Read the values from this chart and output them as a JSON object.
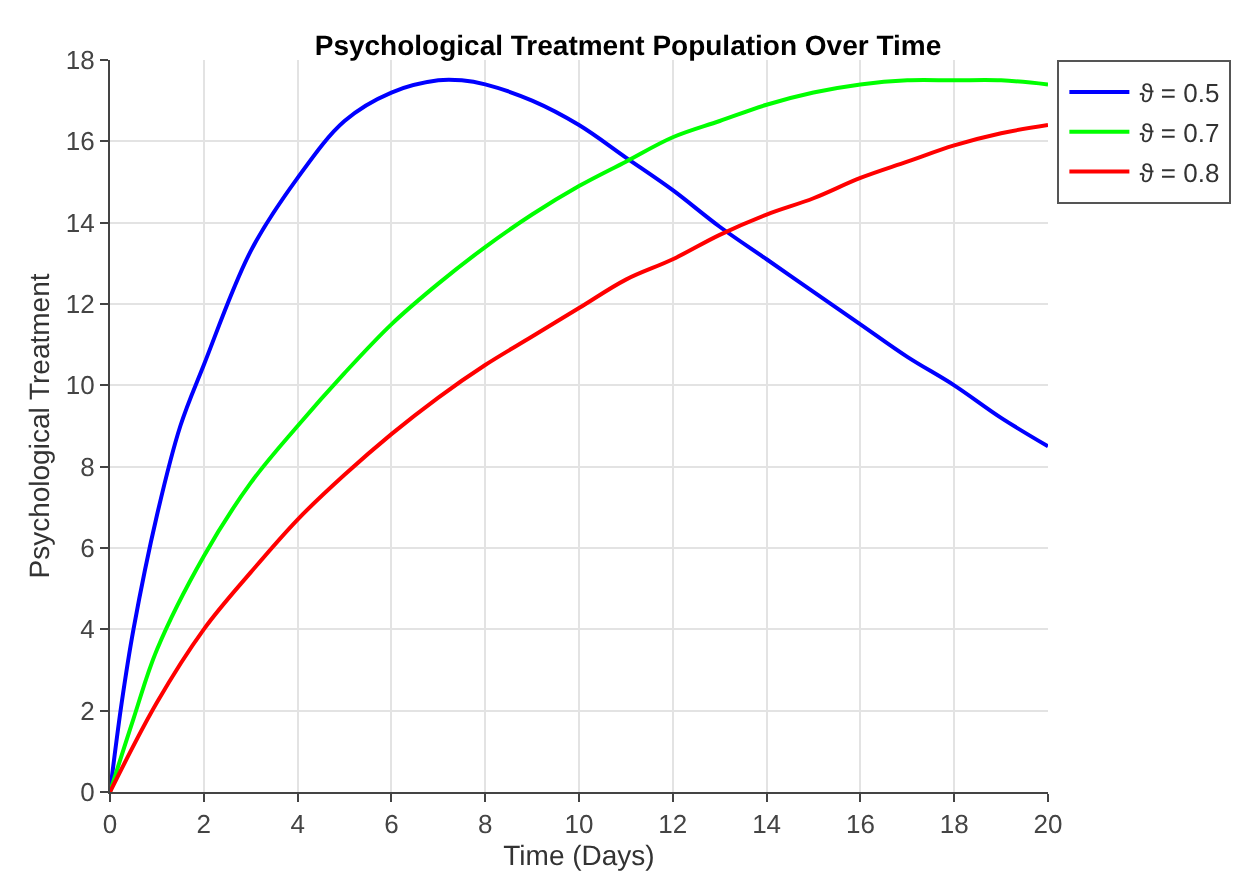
{
  "chart_data": {
    "type": "line",
    "title": "Psychological Treatment Population Over Time",
    "xlabel": "Time (Days)",
    "ylabel": "Psychological Treatment",
    "xlim": [
      0,
      20
    ],
    "xticks": [
      0,
      2,
      4,
      6,
      8,
      10,
      12,
      14,
      16,
      18,
      20
    ],
    "ylim": [
      0,
      18
    ],
    "yticks": [
      0,
      2,
      4,
      6,
      8,
      10,
      12,
      14,
      16,
      18
    ],
    "grid": true,
    "legend": "top right",
    "marker": "none",
    "line_style": "solid",
    "series": [
      {
        "name": "ϑ = 0.5",
        "color": "#0000ff",
        "x": [
          0,
          0.25,
          0.5,
          1,
          1.5,
          2,
          3,
          4,
          5,
          6,
          7,
          7.5,
          8,
          9,
          10,
          11,
          12,
          13,
          14,
          15,
          16,
          17,
          18,
          19,
          20
        ],
        "values": [
          0,
          2.2,
          4,
          6.8,
          9,
          10.5,
          13.3,
          15.1,
          16.5,
          17.2,
          17.5,
          17.5,
          17.4,
          17.0,
          16.4,
          15.6,
          14.8,
          13.9,
          13.1,
          12.3,
          11.5,
          10.7,
          10.0,
          9.2,
          8.5
        ]
      },
      {
        "name": "ϑ = 0.7",
        "color": "#00ff00",
        "x": [
          0,
          0.5,
          1,
          2,
          3,
          4,
          5,
          6,
          7,
          8,
          9,
          10,
          11,
          12,
          13,
          14,
          15,
          16,
          17,
          18,
          19,
          20
        ],
        "values": [
          0,
          1.8,
          3.5,
          5.8,
          7.6,
          9.0,
          10.3,
          11.5,
          12.5,
          13.4,
          14.2,
          14.9,
          15.5,
          16.1,
          16.5,
          16.9,
          17.2,
          17.4,
          17.5,
          17.5,
          17.5,
          17.4
        ]
      },
      {
        "name": "ϑ = 0.8",
        "color": "#ff0000",
        "x": [
          0,
          1,
          2,
          3,
          4,
          5,
          6,
          7,
          8,
          9,
          10,
          11,
          12,
          13,
          14,
          15,
          16,
          17,
          18,
          19,
          20
        ],
        "values": [
          0,
          2.2,
          4.0,
          5.4,
          6.7,
          7.8,
          8.8,
          9.7,
          10.5,
          11.2,
          11.9,
          12.6,
          13.1,
          13.7,
          14.2,
          14.6,
          15.1,
          15.5,
          15.9,
          16.2,
          16.4
        ]
      }
    ]
  }
}
